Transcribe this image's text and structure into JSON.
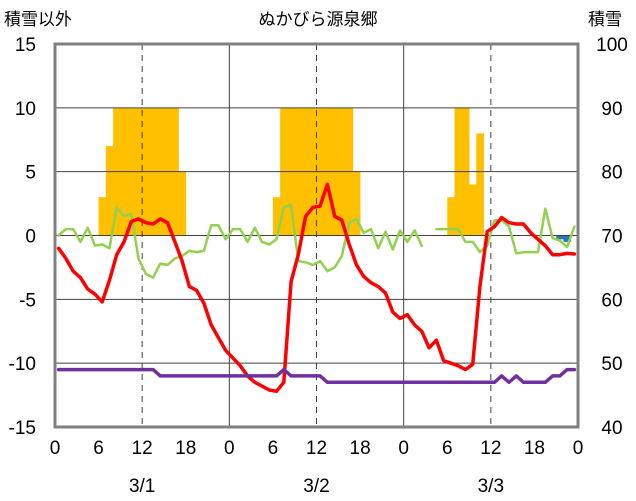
{
  "chart_data": {
    "type": "line",
    "title": "ぬかびら源泉郷",
    "left_axis_label": "積雪以外",
    "right_axis_label": "積雪",
    "left_ylim": [
      -15,
      15
    ],
    "left_ticks": [
      "15",
      "10",
      "5",
      "0",
      "-5",
      "-10",
      "-15"
    ],
    "right_ylim": [
      40,
      100
    ],
    "right_ticks": [
      "100",
      "90",
      "80",
      "70",
      "60",
      "50",
      "40"
    ],
    "x_ticks": [
      "0",
      "6",
      "12",
      "18",
      "0",
      "6",
      "12",
      "18",
      "0",
      "6",
      "12",
      "18",
      "0"
    ],
    "dates": [
      "3/1",
      "3/2",
      "3/3"
    ],
    "x_range_hours": [
      0,
      72
    ],
    "grid": "dashed vertical at 12h, solid vertical at day boundaries, solid horizontal every 5",
    "colors": {
      "precip": "#FFC000",
      "temperature": "#FF0000",
      "wind": "#92D050",
      "snow_depth": "#7030A0",
      "negative_precip": "#2E75B6",
      "frame": "#808080"
    },
    "precip_bars": [
      {
        "hour": 6,
        "value": 3
      },
      {
        "hour": 7,
        "value": 7
      },
      {
        "hour": 8,
        "value": 10
      },
      {
        "hour": 9,
        "value": 10
      },
      {
        "hour": 10,
        "value": 10
      },
      {
        "hour": 11,
        "value": 10
      },
      {
        "hour": 12,
        "value": 10
      },
      {
        "hour": 13,
        "value": 10
      },
      {
        "hour": 14,
        "value": 10
      },
      {
        "hour": 15,
        "value": 10
      },
      {
        "hour": 16,
        "value": 10
      },
      {
        "hour": 17,
        "value": 5
      },
      {
        "hour": 30,
        "value": 3
      },
      {
        "hour": 31,
        "value": 10
      },
      {
        "hour": 32,
        "value": 10
      },
      {
        "hour": 33,
        "value": 10
      },
      {
        "hour": 34,
        "value": 10
      },
      {
        "hour": 35,
        "value": 10
      },
      {
        "hour": 36,
        "value": 10
      },
      {
        "hour": 37,
        "value": 10
      },
      {
        "hour": 38,
        "value": 10
      },
      {
        "hour": 39,
        "value": 10
      },
      {
        "hour": 40,
        "value": 10
      },
      {
        "hour": 41,
        "value": 5
      },
      {
        "hour": 54,
        "value": 3
      },
      {
        "hour": 55,
        "value": 10
      },
      {
        "hour": 56,
        "value": 10
      },
      {
        "hour": 57,
        "value": 4
      },
      {
        "hour": 58,
        "value": 8
      }
    ],
    "negative_bars": [
      {
        "hour": 69,
        "value": -0.3
      },
      {
        "hour": 70,
        "value": -0.5
      }
    ],
    "series": [
      {
        "key": "temperature",
        "axis": "left",
        "values": [
          [
            0,
            -1
          ],
          [
            1,
            -1.8
          ],
          [
            2,
            -2.8
          ],
          [
            3,
            -3.3
          ],
          [
            4,
            -4.2
          ],
          [
            5,
            -4.6
          ],
          [
            6,
            -5.2
          ],
          [
            7,
            -3.5
          ],
          [
            8,
            -1.5
          ],
          [
            9,
            -0.5
          ],
          [
            10,
            1.1
          ],
          [
            11,
            1.3
          ],
          [
            12,
            1.0
          ],
          [
            13,
            0.9
          ],
          [
            14,
            1.3
          ],
          [
            15,
            1.0
          ],
          [
            16,
            -0.5
          ],
          [
            17,
            -2
          ],
          [
            18,
            -4
          ],
          [
            19,
            -4.3
          ],
          [
            20,
            -5.3
          ],
          [
            21,
            -7
          ],
          [
            22,
            -8
          ],
          [
            23,
            -9
          ],
          [
            24,
            -9.6
          ],
          [
            25,
            -10.2
          ],
          [
            26,
            -11
          ],
          [
            27,
            -11.5
          ],
          [
            28,
            -11.8
          ],
          [
            29,
            -12.1
          ],
          [
            30,
            -12.2
          ],
          [
            31,
            -11.5
          ],
          [
            32,
            -3.6
          ],
          [
            33,
            -1.5
          ],
          [
            34,
            1.5
          ],
          [
            35,
            2.2
          ],
          [
            36,
            2.3
          ],
          [
            37,
            4.0
          ],
          [
            38,
            1.5
          ],
          [
            39,
            1.2
          ],
          [
            40,
            -0.7
          ],
          [
            41,
            -2.3
          ],
          [
            42,
            -3.2
          ],
          [
            43,
            -3.7
          ],
          [
            44,
            -4.0
          ],
          [
            45,
            -4.5
          ],
          [
            46,
            -6
          ],
          [
            47,
            -6.5
          ],
          [
            48,
            -6.2
          ],
          [
            49,
            -7
          ],
          [
            50,
            -7.5
          ],
          [
            51,
            -8.8
          ],
          [
            52,
            -8.2
          ],
          [
            53,
            -9.8
          ],
          [
            54,
            -10.0
          ],
          [
            55,
            -10.2
          ],
          [
            56,
            -10.5
          ],
          [
            57,
            -10.1
          ],
          [
            58,
            -4
          ],
          [
            59,
            0.3
          ],
          [
            60,
            0.7
          ],
          [
            61,
            1.4
          ],
          [
            62,
            1.0
          ],
          [
            63,
            0.9
          ],
          [
            64,
            0.9
          ],
          [
            65,
            0.2
          ],
          [
            66,
            -0.3
          ],
          [
            67,
            -0.8
          ],
          [
            68,
            -1.5
          ],
          [
            69,
            -1.5
          ],
          [
            70,
            -1.4
          ],
          [
            71,
            -1.45
          ]
        ]
      },
      {
        "key": "wind",
        "axis": "left",
        "values": [
          [
            0,
            0
          ],
          [
            1,
            0.5
          ],
          [
            2,
            0.5
          ],
          [
            3,
            -0.5
          ],
          [
            4,
            0.6
          ],
          [
            5,
            -0.8
          ],
          [
            6,
            -0.7
          ],
          [
            7,
            -1
          ],
          [
            8,
            2.2
          ],
          [
            9,
            1.5
          ],
          [
            10,
            1.7
          ],
          [
            11,
            -1.8
          ],
          [
            12,
            -3
          ],
          [
            13,
            -3.3
          ],
          [
            14,
            -2.2
          ],
          [
            15,
            -2.3
          ],
          [
            16,
            -1.8
          ],
          [
            17,
            -1.6
          ],
          [
            18,
            -1.2
          ],
          [
            19,
            -1.3
          ],
          [
            20,
            -1.2
          ],
          [
            21,
            0.8
          ],
          [
            22,
            0.8
          ],
          [
            23,
            -0.3
          ],
          [
            24,
            0.5
          ],
          [
            25,
            0.5
          ],
          [
            26,
            -0.5
          ],
          [
            27,
            0.6
          ],
          [
            28,
            -0.5
          ],
          [
            29,
            -0.7
          ],
          [
            30,
            -0.3
          ],
          [
            31,
            2.2
          ],
          [
            32,
            2.4
          ],
          [
            33,
            -2
          ],
          [
            34,
            -2.1
          ],
          [
            35,
            -2.3
          ],
          [
            36,
            -2.0
          ],
          [
            37,
            -2.8
          ],
          [
            38,
            -2.5
          ],
          [
            39,
            -1.6
          ],
          [
            40,
            1.0
          ],
          [
            41,
            1.3
          ],
          [
            42,
            0.2
          ],
          [
            43,
            0.5
          ],
          [
            44,
            -1
          ],
          [
            45,
            0.3
          ],
          [
            46,
            -1.1
          ],
          [
            47,
            0.4
          ],
          [
            48,
            -0.5
          ],
          [
            49,
            0.4
          ],
          [
            50,
            -0.8
          ],
          null,
          [
            52,
            0.5
          ],
          [
            53,
            0.5
          ],
          [
            54,
            0.5
          ],
          [
            55,
            0.5
          ],
          [
            56,
            -0.5
          ],
          [
            57,
            -0.5
          ],
          [
            58,
            -1.3
          ],
          [
            59,
            -0.8
          ],
          [
            60,
            1.2
          ],
          [
            61,
            1.2
          ],
          [
            62,
            0.7
          ],
          [
            63,
            -1.4
          ],
          [
            64,
            -1.3
          ],
          [
            65,
            -1.3
          ],
          [
            66,
            -1.3
          ],
          [
            67,
            2.1
          ],
          [
            68,
            -0.2
          ],
          [
            69,
            -0.4
          ],
          [
            70,
            -0.9
          ],
          [
            71,
            0.7
          ]
        ]
      },
      {
        "key": "snow_depth",
        "axis": "right",
        "values": [
          [
            0,
            49
          ],
          [
            13,
            49
          ],
          [
            14,
            48
          ],
          [
            29,
            48
          ],
          [
            30,
            48
          ],
          [
            31,
            49
          ],
          [
            32,
            48
          ],
          [
            33,
            48
          ],
          [
            34,
            48
          ],
          [
            35,
            48
          ],
          [
            36,
            48
          ],
          [
            37,
            47
          ],
          [
            60,
            47
          ],
          [
            61,
            48
          ],
          [
            62,
            47
          ],
          [
            63,
            48
          ],
          [
            64,
            47
          ],
          [
            65,
            47
          ],
          [
            66,
            47
          ],
          [
            67,
            47
          ],
          [
            68,
            48
          ],
          [
            69,
            48
          ],
          [
            70,
            49
          ],
          [
            71,
            49
          ]
        ]
      }
    ]
  }
}
